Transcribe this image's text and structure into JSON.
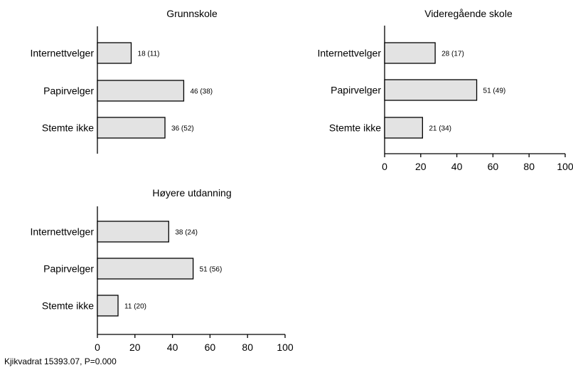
{
  "chart_data": [
    {
      "type": "bar",
      "orientation": "horizontal",
      "title": "Grunnskole",
      "categories": [
        "Internettvelger",
        "Papirvelger",
        "Stemte ikke"
      ],
      "values": [
        18,
        46,
        36
      ],
      "data_labels": [
        "18 (11)",
        "46 (38)",
        "36 (52)"
      ],
      "xlim": [
        0,
        100
      ],
      "xticks": [],
      "show_x_axis": false
    },
    {
      "type": "bar",
      "orientation": "horizontal",
      "title": "Videregående skole",
      "categories": [
        "Internettvelger",
        "Papirvelger",
        "Stemte ikke"
      ],
      "values": [
        28,
        51,
        21
      ],
      "data_labels": [
        "28 (17)",
        "51 (49)",
        "21 (34)"
      ],
      "xlim": [
        0,
        100
      ],
      "xticks": [
        "0",
        "20",
        "40",
        "60",
        "80",
        "100"
      ],
      "show_x_axis": true
    },
    {
      "type": "bar",
      "orientation": "horizontal",
      "title": "Høyere utdanning",
      "categories": [
        "Internettvelger",
        "Papirvelger",
        "Stemte ikke"
      ],
      "values": [
        38,
        51,
        11
      ],
      "data_labels": [
        "38 (24)",
        "51 (56)",
        "11 (20)"
      ],
      "xlim": [
        0,
        100
      ],
      "xticks": [
        "0",
        "20",
        "40",
        "60",
        "80",
        "100"
      ],
      "show_x_axis": true
    }
  ],
  "footnote": "Kjikvadrat 15393.07, P=0.000",
  "colors": {
    "bar_fill": "#e3e3e3",
    "bar_stroke": "#000000",
    "axis": "#000000"
  }
}
